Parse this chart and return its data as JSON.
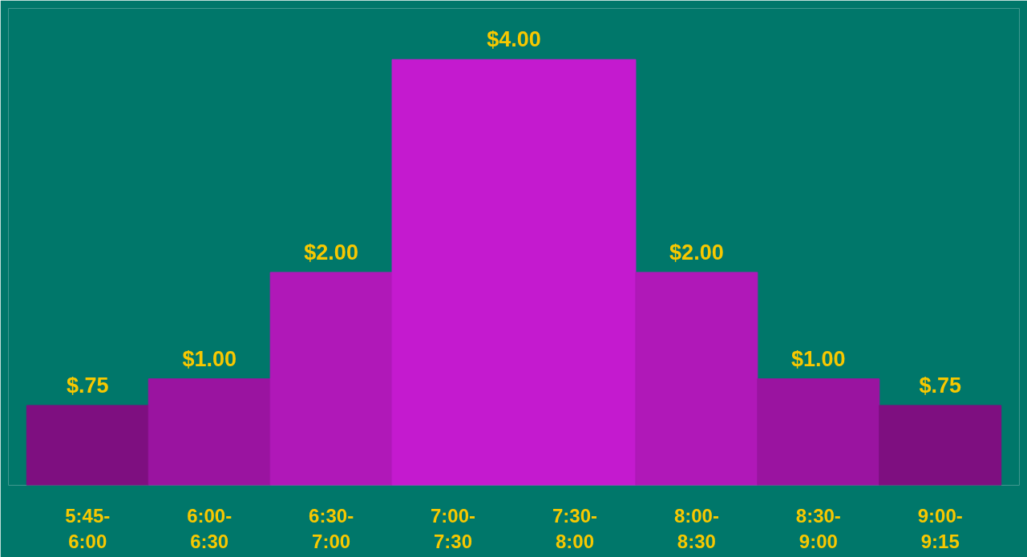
{
  "chart_data": {
    "type": "bar",
    "categories": [
      "5:45-\n6:00",
      "6:00-\n6:30",
      "6:30-\n7:00",
      "7:00-\n7:30",
      "7:30-\n8:00",
      "8:00-\n8:30",
      "8:30-\n9:00",
      "9:00-\n9:15"
    ],
    "values": [
      0.75,
      1,
      2,
      4,
      4,
      2,
      1,
      0.75
    ],
    "colors": [
      "#7e0f80",
      "#9a14a0",
      "#b018b8",
      "#c41acf",
      "#c41acf",
      "#b018b8",
      "#9a14a0",
      "#7e0f80"
    ],
    "value_labels": [
      "$.75",
      "$1.00",
      "$2.00",
      "$4.00",
      null,
      "$2.00",
      "$1.00",
      "$.75"
    ],
    "grid": false
  }
}
